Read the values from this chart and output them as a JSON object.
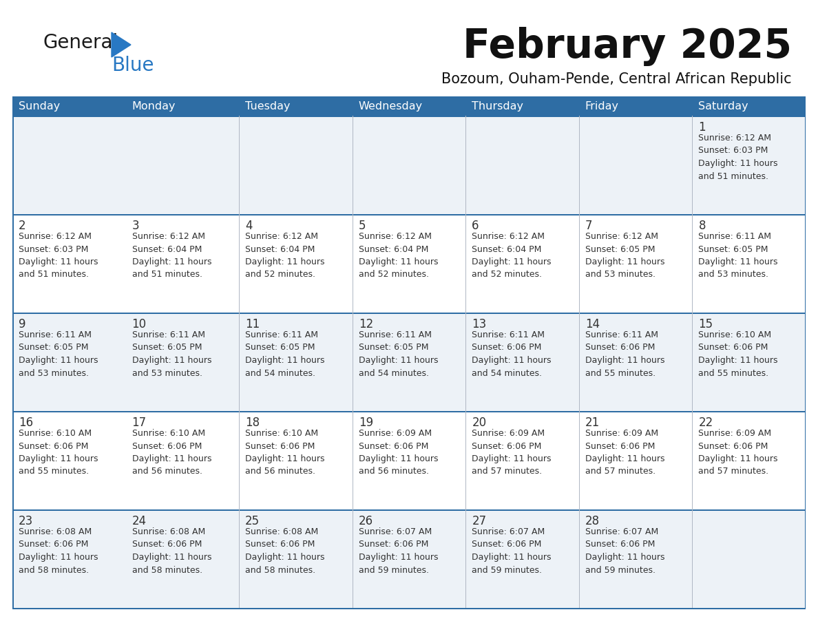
{
  "title": "February 2025",
  "subtitle": "Bozoum, Ouham-Pende, Central African Republic",
  "header_color": "#2e6da4",
  "header_text_color": "#ffffff",
  "row_bg_odd": "#edf2f7",
  "row_bg_even": "#ffffff",
  "grid_line_color": "#2e6da4",
  "day_number_color": "#333333",
  "text_color": "#333333",
  "logo_general_color": "#1a1a1a",
  "logo_blue_color": "#2878c3",
  "days_of_week": [
    "Sunday",
    "Monday",
    "Tuesday",
    "Wednesday",
    "Thursday",
    "Friday",
    "Saturday"
  ],
  "weeks": [
    [
      {
        "day": null,
        "info": null
      },
      {
        "day": null,
        "info": null
      },
      {
        "day": null,
        "info": null
      },
      {
        "day": null,
        "info": null
      },
      {
        "day": null,
        "info": null
      },
      {
        "day": null,
        "info": null
      },
      {
        "day": 1,
        "info": "Sunrise: 6:12 AM\nSunset: 6:03 PM\nDaylight: 11 hours\nand 51 minutes."
      }
    ],
    [
      {
        "day": 2,
        "info": "Sunrise: 6:12 AM\nSunset: 6:03 PM\nDaylight: 11 hours\nand 51 minutes."
      },
      {
        "day": 3,
        "info": "Sunrise: 6:12 AM\nSunset: 6:04 PM\nDaylight: 11 hours\nand 51 minutes."
      },
      {
        "day": 4,
        "info": "Sunrise: 6:12 AM\nSunset: 6:04 PM\nDaylight: 11 hours\nand 52 minutes."
      },
      {
        "day": 5,
        "info": "Sunrise: 6:12 AM\nSunset: 6:04 PM\nDaylight: 11 hours\nand 52 minutes."
      },
      {
        "day": 6,
        "info": "Sunrise: 6:12 AM\nSunset: 6:04 PM\nDaylight: 11 hours\nand 52 minutes."
      },
      {
        "day": 7,
        "info": "Sunrise: 6:12 AM\nSunset: 6:05 PM\nDaylight: 11 hours\nand 53 minutes."
      },
      {
        "day": 8,
        "info": "Sunrise: 6:11 AM\nSunset: 6:05 PM\nDaylight: 11 hours\nand 53 minutes."
      }
    ],
    [
      {
        "day": 9,
        "info": "Sunrise: 6:11 AM\nSunset: 6:05 PM\nDaylight: 11 hours\nand 53 minutes."
      },
      {
        "day": 10,
        "info": "Sunrise: 6:11 AM\nSunset: 6:05 PM\nDaylight: 11 hours\nand 53 minutes."
      },
      {
        "day": 11,
        "info": "Sunrise: 6:11 AM\nSunset: 6:05 PM\nDaylight: 11 hours\nand 54 minutes."
      },
      {
        "day": 12,
        "info": "Sunrise: 6:11 AM\nSunset: 6:05 PM\nDaylight: 11 hours\nand 54 minutes."
      },
      {
        "day": 13,
        "info": "Sunrise: 6:11 AM\nSunset: 6:06 PM\nDaylight: 11 hours\nand 54 minutes."
      },
      {
        "day": 14,
        "info": "Sunrise: 6:11 AM\nSunset: 6:06 PM\nDaylight: 11 hours\nand 55 minutes."
      },
      {
        "day": 15,
        "info": "Sunrise: 6:10 AM\nSunset: 6:06 PM\nDaylight: 11 hours\nand 55 minutes."
      }
    ],
    [
      {
        "day": 16,
        "info": "Sunrise: 6:10 AM\nSunset: 6:06 PM\nDaylight: 11 hours\nand 55 minutes."
      },
      {
        "day": 17,
        "info": "Sunrise: 6:10 AM\nSunset: 6:06 PM\nDaylight: 11 hours\nand 56 minutes."
      },
      {
        "day": 18,
        "info": "Sunrise: 6:10 AM\nSunset: 6:06 PM\nDaylight: 11 hours\nand 56 minutes."
      },
      {
        "day": 19,
        "info": "Sunrise: 6:09 AM\nSunset: 6:06 PM\nDaylight: 11 hours\nand 56 minutes."
      },
      {
        "day": 20,
        "info": "Sunrise: 6:09 AM\nSunset: 6:06 PM\nDaylight: 11 hours\nand 57 minutes."
      },
      {
        "day": 21,
        "info": "Sunrise: 6:09 AM\nSunset: 6:06 PM\nDaylight: 11 hours\nand 57 minutes."
      },
      {
        "day": 22,
        "info": "Sunrise: 6:09 AM\nSunset: 6:06 PM\nDaylight: 11 hours\nand 57 minutes."
      }
    ],
    [
      {
        "day": 23,
        "info": "Sunrise: 6:08 AM\nSunset: 6:06 PM\nDaylight: 11 hours\nand 58 minutes."
      },
      {
        "day": 24,
        "info": "Sunrise: 6:08 AM\nSunset: 6:06 PM\nDaylight: 11 hours\nand 58 minutes."
      },
      {
        "day": 25,
        "info": "Sunrise: 6:08 AM\nSunset: 6:06 PM\nDaylight: 11 hours\nand 58 minutes."
      },
      {
        "day": 26,
        "info": "Sunrise: 6:07 AM\nSunset: 6:06 PM\nDaylight: 11 hours\nand 59 minutes."
      },
      {
        "day": 27,
        "info": "Sunrise: 6:07 AM\nSunset: 6:06 PM\nDaylight: 11 hours\nand 59 minutes."
      },
      {
        "day": 28,
        "info": "Sunrise: 6:07 AM\nSunset: 6:06 PM\nDaylight: 11 hours\nand 59 minutes."
      },
      {
        "day": null,
        "info": null
      }
    ]
  ],
  "figwidth": 11.88,
  "figheight": 9.18,
  "dpi": 100
}
